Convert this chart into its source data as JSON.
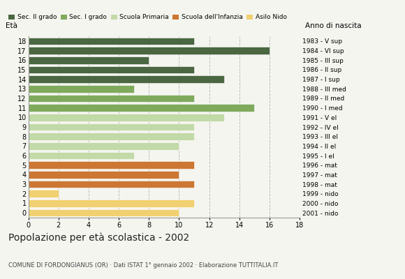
{
  "ages": [
    18,
    17,
    16,
    15,
    14,
    13,
    12,
    11,
    10,
    9,
    8,
    7,
    6,
    5,
    4,
    3,
    2,
    1,
    0
  ],
  "years": [
    "1983 - V sup",
    "1984 - VI sup",
    "1985 - III sup",
    "1986 - II sup",
    "1987 - I sup",
    "1988 - III med",
    "1989 - II med",
    "1990 - I med",
    "1991 - V el",
    "1992 - IV el",
    "1993 - III el",
    "1994 - II el",
    "1995 - I el",
    "1996 - mat",
    "1997 - mat",
    "1998 - mat",
    "1999 - nido",
    "2000 - nido",
    "2001 - nido"
  ],
  "values": [
    11,
    16,
    8,
    11,
    13,
    7,
    11,
    15,
    13,
    11,
    11,
    10,
    7,
    11,
    10,
    11,
    2,
    11,
    10
  ],
  "categories": [
    "Sec. II grado",
    "Sec. II grado",
    "Sec. II grado",
    "Sec. II grado",
    "Sec. II grado",
    "Sec. I grado",
    "Sec. I grado",
    "Sec. I grado",
    "Scuola Primaria",
    "Scuola Primaria",
    "Scuola Primaria",
    "Scuola Primaria",
    "Scuola Primaria",
    "Scuola dell'Infanzia",
    "Scuola dell'Infanzia",
    "Scuola dell'Infanzia",
    "Asilo Nido",
    "Asilo Nido",
    "Asilo Nido"
  ],
  "colors": {
    "Sec. II grado": "#4a6741",
    "Sec. I grado": "#7faa5c",
    "Scuola Primaria": "#c2d9a8",
    "Scuola dell'Infanzia": "#cc7733",
    "Asilo Nido": "#f0d070"
  },
  "legend_order": [
    "Sec. II grado",
    "Sec. I grado",
    "Scuola Primaria",
    "Scuola dell'Infanzia",
    "Asilo Nido"
  ],
  "xlim": [
    0,
    18
  ],
  "xticks": [
    0,
    2,
    4,
    6,
    8,
    10,
    12,
    14,
    16,
    18
  ],
  "title": "Popolazione per età scolastica - 2002",
  "subtitle": "COMUNE DI FORDONGIANUS (OR) · Dati ISTAT 1° gennaio 2002 · Elaborazione TUTTITALIA.IT",
  "label_eta": "Età",
  "label_anno": "Anno di nascita",
  "background_color": "#f5f5f0",
  "bar_height": 0.78,
  "grid_color": "#bbbbbb"
}
